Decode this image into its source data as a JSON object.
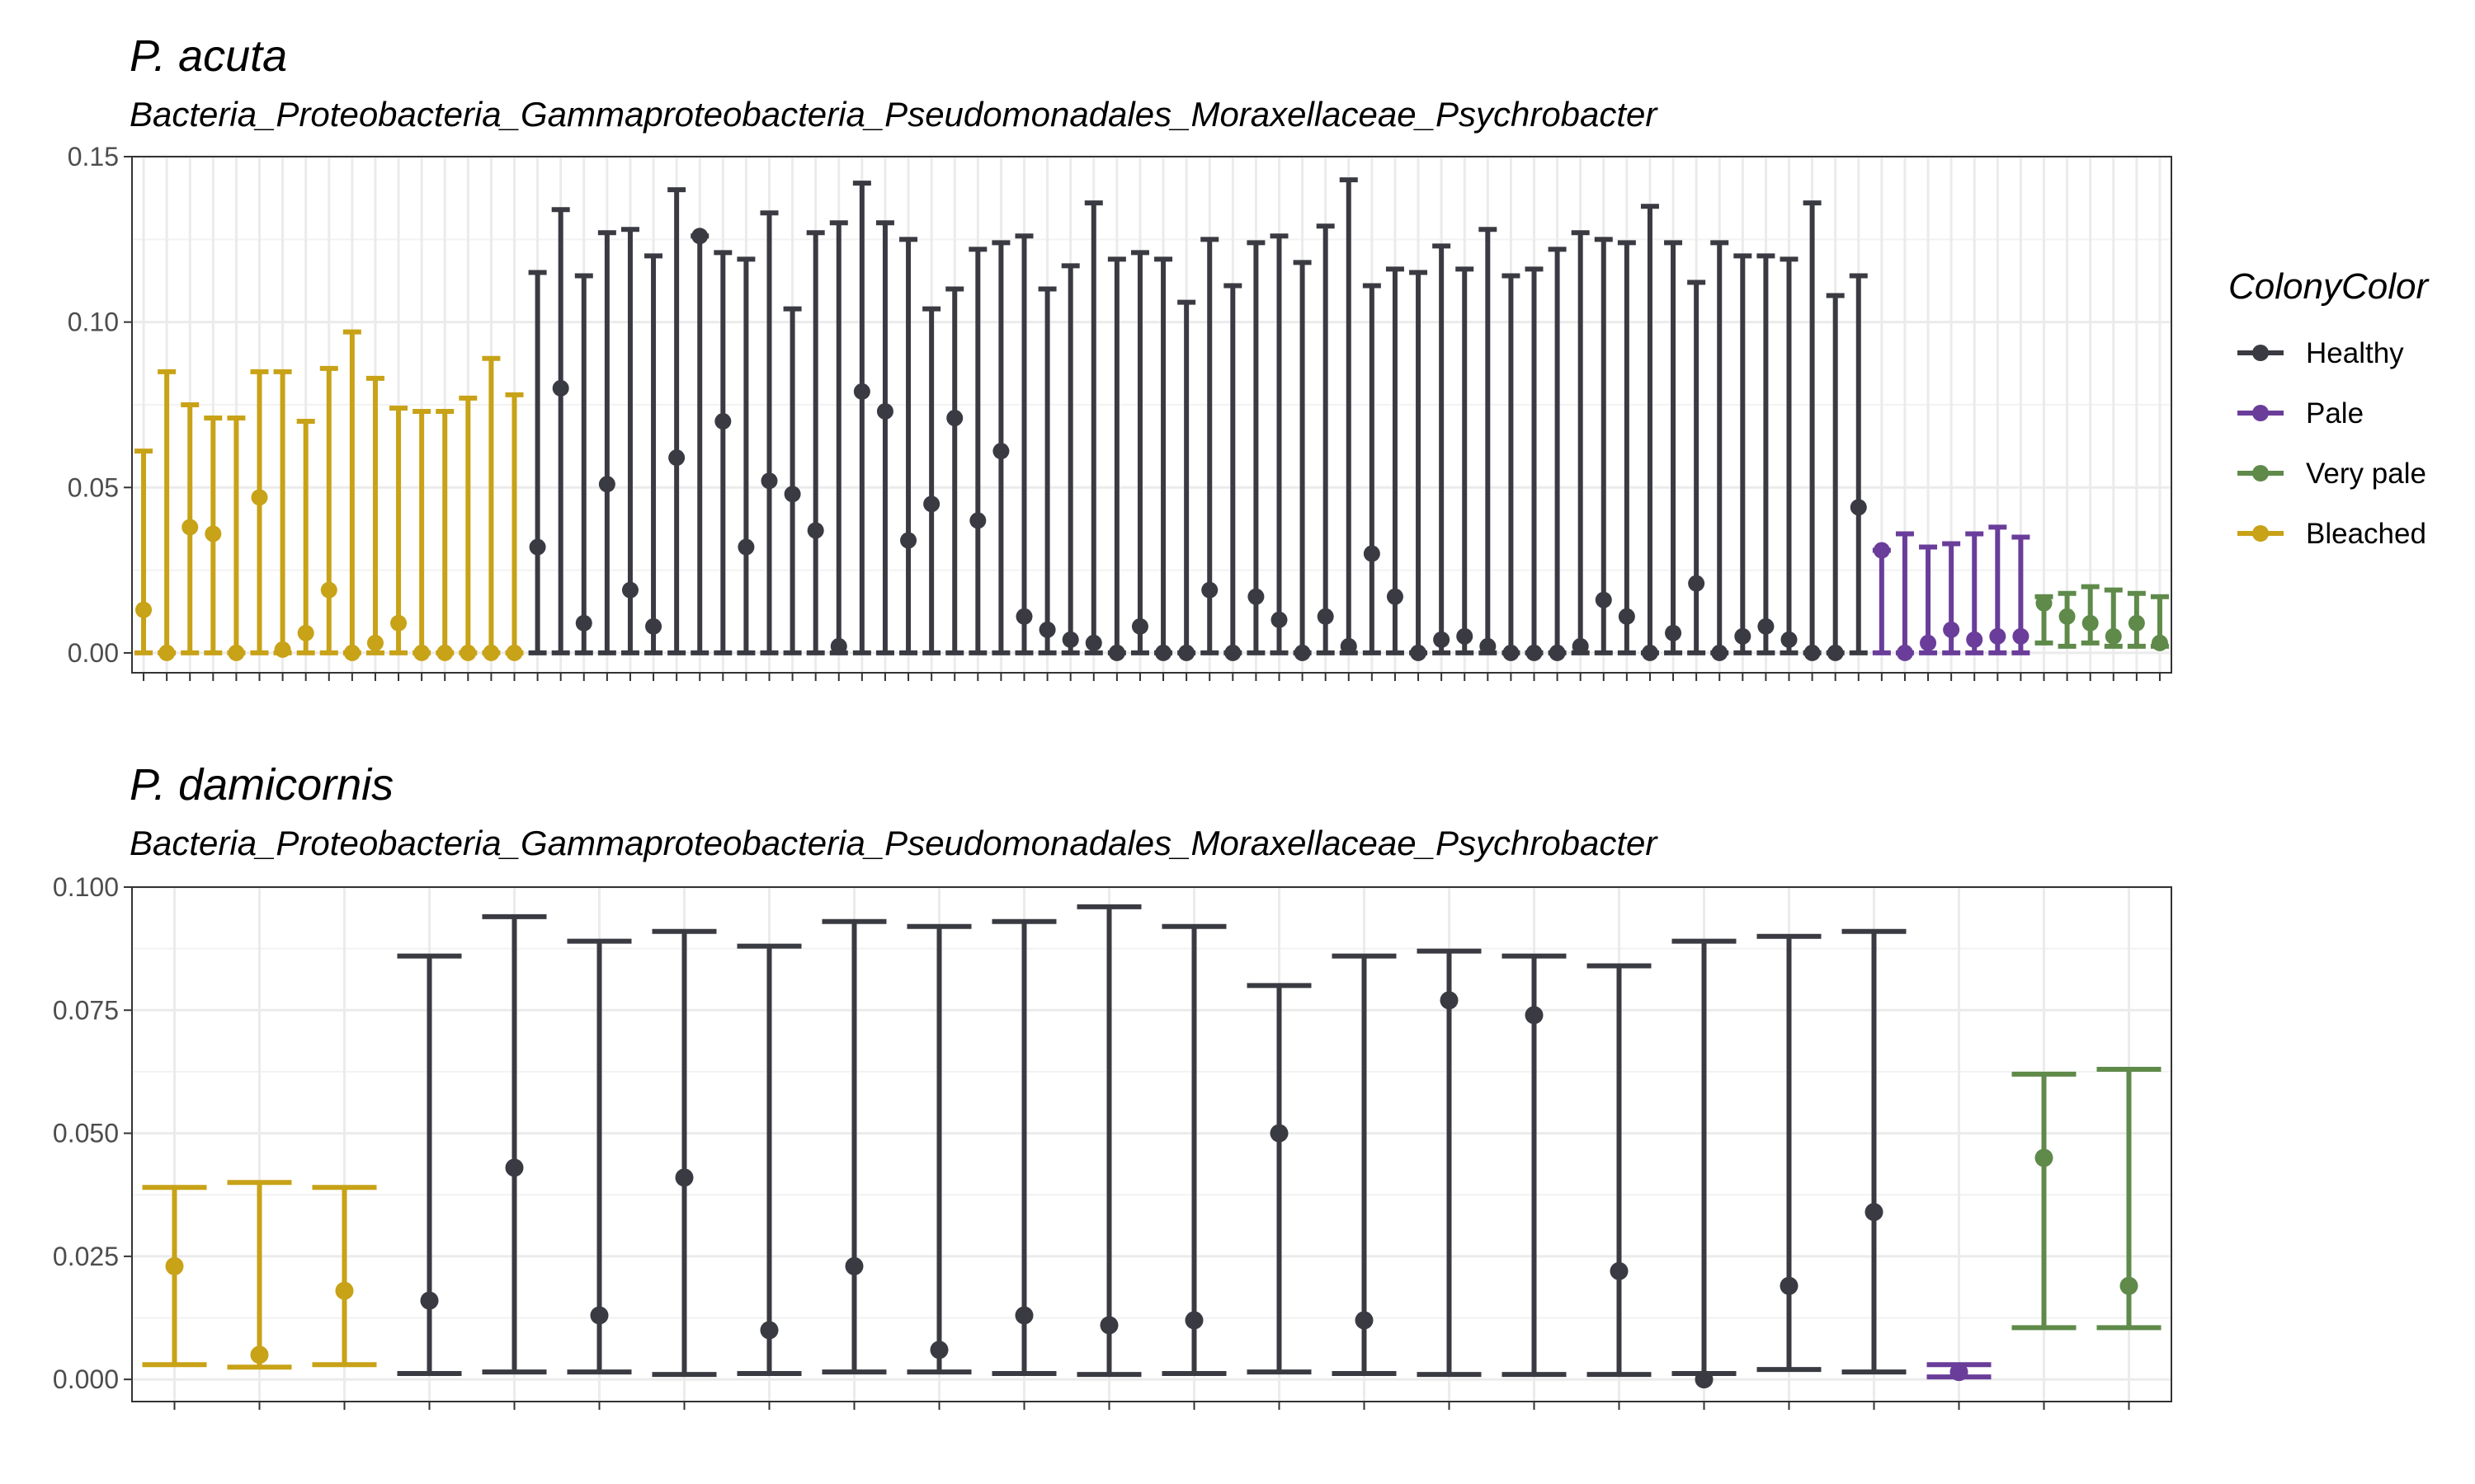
{
  "colors": {
    "Healthy": "#3a3a42",
    "Pale": "#6a3d9a",
    "Very pale": "#5f8a4a",
    "Bleached": "#c8a217"
  },
  "legend": {
    "title": "ColonyColor",
    "items": [
      "Healthy",
      "Pale",
      "Very pale",
      "Bleached"
    ]
  },
  "chart_data": [
    {
      "type": "scatter",
      "title": "P. acuta",
      "subtitle": "Bacteria_Proteobacteria_Gammaproteobacteria_Pseudomonadales_Moraxellaceae_Psychrobacter",
      "ylim": [
        -0.006,
        0.15
      ],
      "yticks": [
        0.0,
        0.05,
        0.1,
        0.15
      ],
      "ytick_labels": [
        "0.00",
        "0.05",
        "0.10",
        "0.15"
      ],
      "grid": true,
      "groups": [
        {
          "color": "Bleached",
          "mean": [
            0.013,
            0.0,
            0.038,
            0.036,
            0.0,
            0.047,
            0.001,
            0.006,
            0.019,
            0.0,
            0.003,
            0.009,
            0.0,
            0.0,
            0.0,
            0.0,
            0.0
          ],
          "upper": [
            0.061,
            0.085,
            0.075,
            0.071,
            0.071,
            0.085,
            0.085,
            0.07,
            0.086,
            0.097,
            0.083,
            0.074,
            0.073,
            0.073,
            0.077,
            0.089,
            0.078
          ],
          "lower": [
            0,
            0,
            0,
            0,
            0,
            0,
            0,
            0,
            0,
            0,
            0,
            0,
            0,
            0,
            0,
            0,
            0
          ]
        },
        {
          "color": "Healthy",
          "mean": [
            0.032,
            0.08,
            0.009,
            0.051,
            0.019,
            0.008,
            0.059,
            0.126,
            0.07,
            0.032,
            0.052,
            0.048,
            0.037,
            0.002,
            0.079,
            0.073,
            0.034,
            0.045,
            0.071,
            0.04,
            0.061,
            0.011,
            0.007,
            0.004,
            0.003,
            0.0,
            0.008,
            0.0,
            0.0,
            0.019,
            0.0,
            0.017,
            0.01,
            0.0,
            0.011,
            0.002,
            0.03,
            0.017,
            0.0,
            0.004,
            0.005,
            0.002,
            0.0,
            0.0,
            0.0,
            0.002,
            0.016,
            0.011,
            0.0,
            0.006,
            0.021,
            0.0,
            0.005,
            0.008,
            0.004,
            0.0,
            0.0,
            0.044
          ],
          "upper": [
            0.115,
            0.134,
            0.114,
            0.127,
            0.128,
            0.12,
            0.14,
            0.126,
            0.121,
            0.119,
            0.133,
            0.104,
            0.127,
            0.13,
            0.142,
            0.13,
            0.125,
            0.104,
            0.11,
            0.122,
            0.124,
            0.126,
            0.11,
            0.117,
            0.136,
            0.119,
            0.121,
            0.119,
            0.106,
            0.125,
            0.111,
            0.124,
            0.126,
            0.118,
            0.129,
            0.143,
            0.111,
            0.116,
            0.115,
            0.123,
            0.116,
            0.128,
            0.114,
            0.116,
            0.122,
            0.127,
            0.125,
            0.124,
            0.135,
            0.124,
            0.112,
            0.124,
            0.12,
            0.12,
            0.119,
            0.136,
            0.108,
            0.114
          ],
          "lower": [
            0,
            0,
            0,
            0,
            0,
            0,
            0,
            0,
            0,
            0,
            0,
            0,
            0,
            0,
            0,
            0,
            0,
            0,
            0,
            0,
            0,
            0,
            0,
            0,
            0,
            0,
            0,
            0,
            0,
            0,
            0,
            0,
            0,
            0,
            0,
            0,
            0,
            0,
            0,
            0,
            0,
            0,
            0,
            0,
            0,
            0,
            0,
            0,
            0,
            0,
            0,
            0,
            0,
            0,
            0,
            0,
            0,
            0
          ]
        },
        {
          "color": "Pale",
          "mean": [
            0.031,
            0.0,
            0.003,
            0.007,
            0.004,
            0.005,
            0.005
          ],
          "upper": [
            0.031,
            0.036,
            0.032,
            0.033,
            0.036,
            0.038,
            0.035
          ],
          "lower": [
            0,
            0,
            0,
            0,
            0,
            0,
            0
          ]
        },
        {
          "color": "Very pale",
          "mean": [
            0.015,
            0.011,
            0.009,
            0.005,
            0.009,
            0.003
          ],
          "upper": [
            0.017,
            0.018,
            0.02,
            0.019,
            0.018,
            0.017
          ],
          "lower": [
            0.003,
            0.002,
            0.003,
            0.002,
            0.002,
            0.002
          ]
        }
      ]
    },
    {
      "type": "scatter",
      "title": "P. damicornis",
      "subtitle": "Bacteria_Proteobacteria_Gammaproteobacteria_Pseudomonadales_Moraxellaceae_Psychrobacter",
      "ylim": [
        -0.0045,
        0.1
      ],
      "yticks": [
        0.0,
        0.025,
        0.05,
        0.075,
        0.1
      ],
      "ytick_labels": [
        "0.000",
        "0.025",
        "0.050",
        "0.075",
        "0.100"
      ],
      "grid": true,
      "groups": [
        {
          "color": "Bleached",
          "mean": [
            0.023,
            0.005,
            0.018
          ],
          "upper": [
            0.039,
            0.04,
            0.039
          ],
          "lower": [
            0.003,
            0.0025,
            0.003
          ]
        },
        {
          "color": "Healthy",
          "mean": [
            0.016,
            0.043,
            0.013,
            0.041,
            0.01,
            0.023,
            0.006,
            0.013,
            0.011,
            0.012,
            0.05,
            0.012,
            0.077,
            0.074,
            0.022,
            0.0,
            0.019,
            0.034
          ],
          "upper": [
            0.086,
            0.094,
            0.089,
            0.091,
            0.088,
            0.093,
            0.092,
            0.093,
            0.096,
            0.092,
            0.08,
            0.086,
            0.087,
            0.086,
            0.084,
            0.089,
            0.09,
            0.091
          ],
          "lower": [
            0.0012,
            0.0015,
            0.0015,
            0.001,
            0.0012,
            0.0015,
            0.0015,
            0.0012,
            0.001,
            0.0012,
            0.0015,
            0.0012,
            0.001,
            0.001,
            0.001,
            0.0012,
            0.002,
            0.0015
          ]
        },
        {
          "color": "Pale",
          "mean": [
            0.0015
          ],
          "upper": [
            0.003
          ],
          "lower": [
            0.0005
          ]
        },
        {
          "color": "Very pale",
          "mean": [
            0.045,
            0.019
          ],
          "upper": [
            0.062,
            0.063
          ],
          "lower": [
            0.0105,
            0.0105
          ]
        }
      ]
    }
  ]
}
